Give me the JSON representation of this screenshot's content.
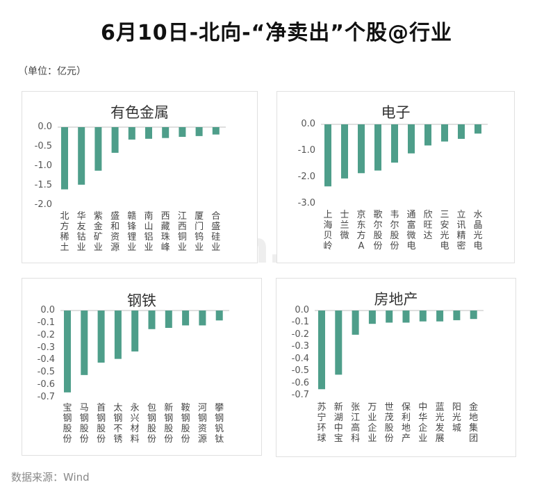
{
  "page": {
    "title": "6月10日-北向-“净卖出”个股@行业",
    "unit": "（单位：亿元）",
    "source": "数据来源：Wind",
    "watermark": "Win.d"
  },
  "colors": {
    "bar": "#4e9e8a",
    "axis": "#bfbfbf",
    "panel_border": "#e0e0e0"
  },
  "chart_data": [
    {
      "type": "bar",
      "title": "有色金属",
      "categories": [
        "北方稀土",
        "华友钴业",
        "紫金矿业",
        "盛和资源",
        "赣锋锂业",
        "南山铝业",
        "西藏珠峰",
        "江西铜业",
        "厦门钨业",
        "合盛硅业"
      ],
      "values": [
        -1.6,
        -1.48,
        -1.12,
        -0.66,
        -0.32,
        -0.3,
        -0.28,
        -0.25,
        -0.23,
        -0.19
      ],
      "yticks": [
        "0.0",
        "-0.5",
        "-1.0",
        "-1.5",
        "-2.0"
      ],
      "ylim": [
        -2.0,
        0
      ],
      "xlabel": "",
      "ylabel": ""
    },
    {
      "type": "bar",
      "title": "电子",
      "categories": [
        "上海贝岭",
        "士兰微",
        "京东方A",
        "歌尔股份",
        "韦尔股份",
        "通富微电",
        "欣旺达",
        "三安光电",
        "立讯精密",
        "水晶光电"
      ],
      "values": [
        -2.35,
        -2.05,
        -1.85,
        -1.75,
        -1.45,
        -1.1,
        -0.8,
        -0.65,
        -0.55,
        -0.35
      ],
      "yticks": [
        "0.0",
        "-1.0",
        "-2.0",
        "-3.0"
      ],
      "ylim": [
        -3.0,
        0
      ],
      "xlabel": "",
      "ylabel": ""
    },
    {
      "type": "bar",
      "title": "钢铁",
      "categories": [
        "宝钢股份",
        "马钢股份",
        "首钢股份",
        "太钢不锈",
        "永兴材料",
        "包钢股份",
        "新钢股份",
        "鞍钢股份",
        "河钢资源",
        "攀钢钒钛"
      ],
      "values": [
        -0.66,
        -0.52,
        -0.42,
        -0.39,
        -0.33,
        -0.15,
        -0.14,
        -0.12,
        -0.12,
        -0.08
      ],
      "yticks": [
        "0.0",
        "-0.1",
        "-0.2",
        "-0.3",
        "-0.4",
        "-0.5",
        "-0.6",
        "-0.7"
      ],
      "ylim": [
        -0.7,
        0
      ],
      "xlabel": "",
      "ylabel": ""
    },
    {
      "type": "bar",
      "title": "房地产",
      "categories": [
        "苏宁环球",
        "新湖中宝",
        "张江高科",
        "万业企业",
        "世茂股份",
        "保利地产",
        "中华企业",
        "蓝光发展",
        "阳光城",
        "金地集团"
      ],
      "values": [
        -0.65,
        -0.53,
        -0.2,
        -0.11,
        -0.1,
        -0.1,
        -0.09,
        -0.09,
        -0.08,
        -0.07
      ],
      "yticks": [
        "0.0",
        "-0.1",
        "-0.2",
        "-0.3",
        "-0.4",
        "-0.5",
        "-0.6",
        "-0.7"
      ],
      "ylim": [
        -0.7,
        0
      ],
      "xlabel": "",
      "ylabel": ""
    }
  ]
}
